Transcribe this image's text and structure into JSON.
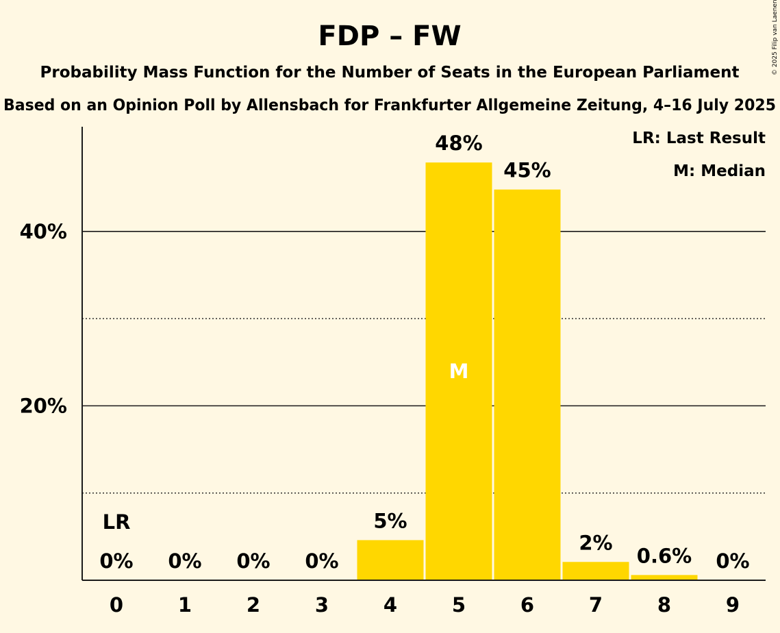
{
  "chart_data": {
    "type": "bar",
    "title": "FDP – FW",
    "subtitle": "Probability Mass Function for the Number of Seats in the European Parliament",
    "subtitle2": "Based on an Opinion Poll by Allensbach for Frankfurter Allgemeine Zeitung, 4–16 July 2025",
    "credit": "© 2025 Filip van Laenen",
    "categories": [
      "0",
      "1",
      "2",
      "3",
      "4",
      "5",
      "6",
      "7",
      "8",
      "9"
    ],
    "values": [
      0,
      0,
      0,
      0,
      4.6,
      47.9,
      44.8,
      2.1,
      0.6,
      0
    ],
    "value_labels": [
      "0%",
      "0%",
      "0%",
      "0%",
      "5%",
      "48%",
      "45%",
      "2%",
      "0.6%",
      "0%"
    ],
    "ylim": [
      0,
      52
    ],
    "yticks": [
      20,
      40
    ],
    "ytick_labels": [
      "20%",
      "40%"
    ],
    "minor_gridlines": [
      10,
      30
    ],
    "bar_color": "#ffd700",
    "median_index": 5,
    "median_marker": "M",
    "last_result_index": 0,
    "last_result_marker": "LR",
    "legend": [
      "LR: Last Result",
      "M: Median"
    ],
    "legend_position": "top-right"
  }
}
